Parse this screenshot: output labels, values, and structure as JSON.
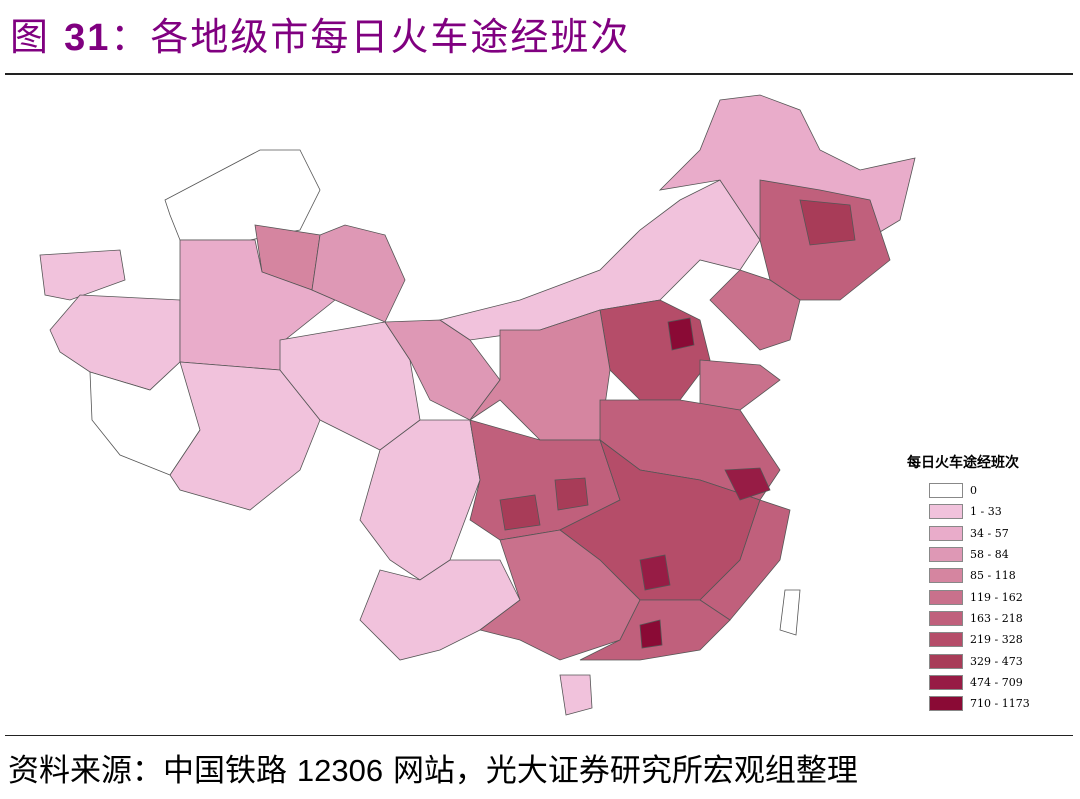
{
  "header": {
    "title_prefix": "图",
    "title_number": "31",
    "title_text": "：各地级市每日火车途经班次"
  },
  "legend": {
    "title": "每日火车途经班次",
    "items": [
      {
        "label": "0",
        "color": "#ffffff"
      },
      {
        "label": "1 - 33",
        "color": "#f1c2dc"
      },
      {
        "label": "34 - 57",
        "color": "#e9acca"
      },
      {
        "label": "58 - 84",
        "color": "#de98b5"
      },
      {
        "label": "85 - 118",
        "color": "#d585a0"
      },
      {
        "label": "119 - 162",
        "color": "#c9718c"
      },
      {
        "label": "163 - 218",
        "color": "#c0607c"
      },
      {
        "label": "219 - 328",
        "color": "#b54d69"
      },
      {
        "label": "329 - 473",
        "color": "#a83c58"
      },
      {
        "label": "474 - 709",
        "color": "#971c45"
      },
      {
        "label": "710 - 1173",
        "color": "#8a0a35"
      }
    ]
  },
  "footer": {
    "source_prefix": "资料来源：中国铁路",
    "source_number": "12306",
    "source_suffix": "网站，光大证券研究所宏观组整理"
  }
}
